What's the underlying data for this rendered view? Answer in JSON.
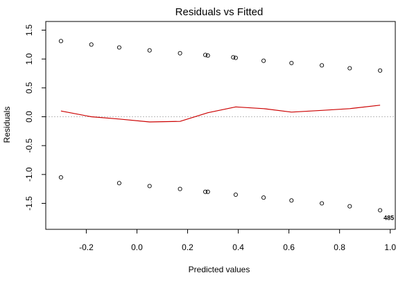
{
  "chart_data": {
    "type": "scatter",
    "title": "Residuals vs Fitted",
    "xlabel": "Predicted values",
    "ylabel": "Residuals",
    "xlim": [
      -0.36,
      1.02
    ],
    "ylim": [
      -1.95,
      1.65
    ],
    "xticks": [
      -0.2,
      0.0,
      0.2,
      0.4,
      0.6,
      0.8,
      1.0
    ],
    "xtick_labels": [
      "-0.2",
      "0.0",
      "0.2",
      "0.4",
      "0.6",
      "0.8",
      "1.0"
    ],
    "yticks": [
      -1.5,
      -1.0,
      -0.5,
      0.0,
      0.5,
      1.0,
      1.5
    ],
    "ytick_labels": [
      "-1.5",
      "-1.0",
      "-0.5",
      "0.0",
      "0.5",
      "1.0",
      "1.5"
    ],
    "grid": false,
    "reference_line": {
      "y": 0,
      "color": "#bbbbbb",
      "style": "dotted"
    },
    "points": [
      {
        "x": -0.3,
        "y": 1.31
      },
      {
        "x": -0.18,
        "y": 1.25
      },
      {
        "x": -0.07,
        "y": 1.2
      },
      {
        "x": 0.05,
        "y": 1.15
      },
      {
        "x": 0.17,
        "y": 1.1
      },
      {
        "x": 0.27,
        "y": 1.07
      },
      {
        "x": 0.28,
        "y": 1.06
      },
      {
        "x": 0.38,
        "y": 1.03
      },
      {
        "x": 0.39,
        "y": 1.02
      },
      {
        "x": 0.5,
        "y": 0.97
      },
      {
        "x": 0.61,
        "y": 0.93
      },
      {
        "x": 0.73,
        "y": 0.89
      },
      {
        "x": 0.84,
        "y": 0.84
      },
      {
        "x": 0.96,
        "y": 0.8
      },
      {
        "x": -0.3,
        "y": -1.05
      },
      {
        "x": -0.07,
        "y": -1.15
      },
      {
        "x": 0.05,
        "y": -1.2
      },
      {
        "x": 0.17,
        "y": -1.25
      },
      {
        "x": 0.27,
        "y": -1.3
      },
      {
        "x": 0.28,
        "y": -1.3
      },
      {
        "x": 0.39,
        "y": -1.35
      },
      {
        "x": 0.5,
        "y": -1.4
      },
      {
        "x": 0.61,
        "y": -1.45
      },
      {
        "x": 0.73,
        "y": -1.5
      },
      {
        "x": 0.84,
        "y": -1.55
      },
      {
        "x": 0.96,
        "y": -1.62
      }
    ],
    "point_labels": [
      {
        "x": 0.96,
        "y": -1.62,
        "text": "485"
      }
    ],
    "series": [
      {
        "type": "line",
        "color": "#cc0000",
        "x": [
          -0.3,
          -0.18,
          -0.07,
          0.05,
          0.17,
          0.28,
          0.39,
          0.5,
          0.61,
          0.73,
          0.84,
          0.96
        ],
        "y": [
          0.1,
          0.0,
          -0.04,
          -0.09,
          -0.08,
          0.07,
          0.17,
          0.14,
          0.08,
          0.11,
          0.14,
          0.2
        ]
      }
    ]
  }
}
